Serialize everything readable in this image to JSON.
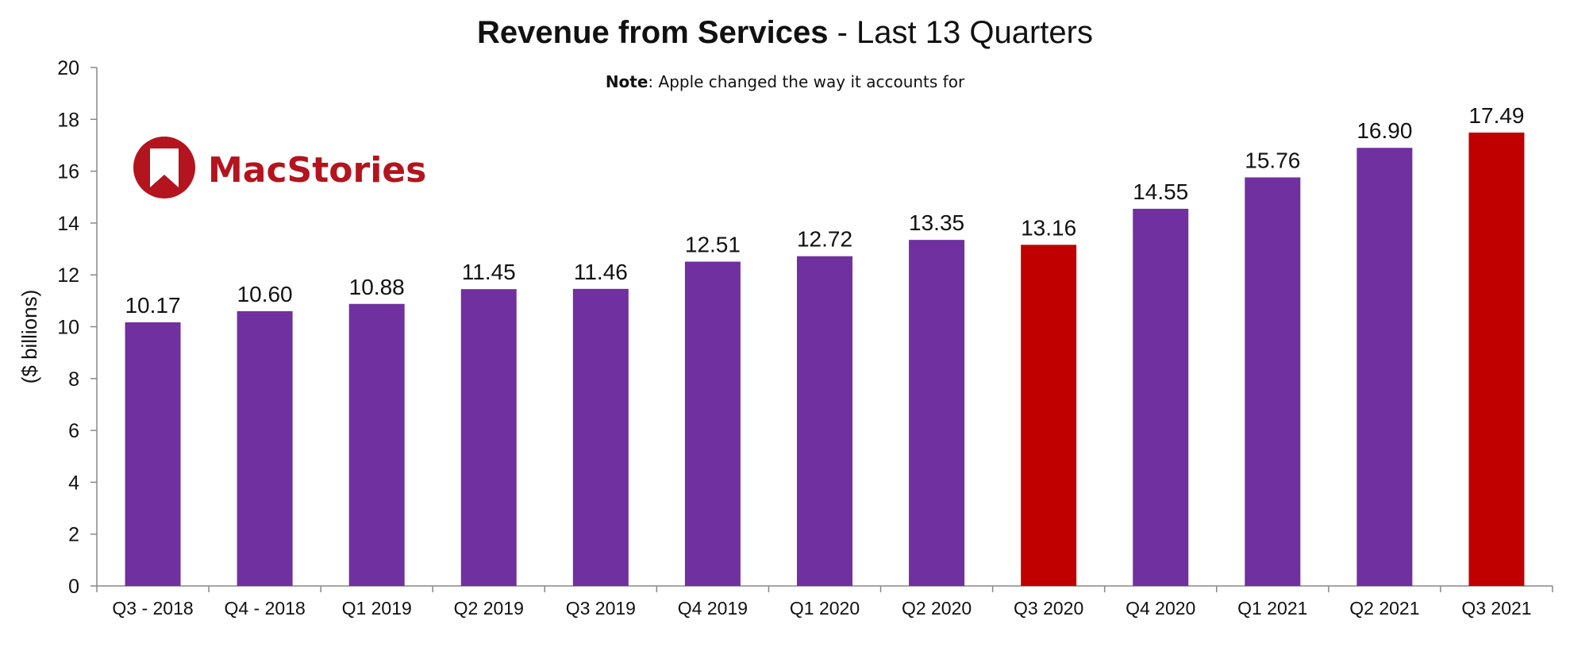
{
  "chart_data": {
    "type": "bar",
    "title_bold": "Revenue from Services",
    "title_rest": " - Last 13 Quarters",
    "note_label": "Note",
    "note_text": ": Apple changed the way it accounts for",
    "ylabel": "($ billions)",
    "xlabel": "",
    "ylim": [
      0,
      20
    ],
    "yticks": [
      0,
      2,
      4,
      6,
      8,
      10,
      12,
      14,
      16,
      18,
      20
    ],
    "categories": [
      "Q3 - 2018",
      "Q4 - 2018",
      "Q1 2019",
      "Q2 2019",
      "Q3 2019",
      "Q4 2019",
      "Q1 2020",
      "Q2 2020",
      "Q3 2020",
      "Q4 2020",
      "Q1 2021",
      "Q2 2021",
      "Q3 2021"
    ],
    "values": [
      10.17,
      10.6,
      10.88,
      11.45,
      11.46,
      12.51,
      12.72,
      13.35,
      13.16,
      14.55,
      15.76,
      16.9,
      17.49
    ],
    "value_labels": [
      "10.17",
      "10.60",
      "10.88",
      "11.45",
      "11.46",
      "12.51",
      "12.72",
      "13.35",
      "13.16",
      "14.55",
      "15.76",
      "16.90",
      "17.49"
    ],
    "highlight_categories": [
      "Q3 2020",
      "Q3 2021"
    ],
    "grid": false,
    "colors": {
      "bar": "#7030a0",
      "highlight": "#c00000",
      "axis": "#888888"
    }
  },
  "logo": {
    "text": "MacStories",
    "icon": "bookmark-badge-icon",
    "color": "#b3141e"
  }
}
